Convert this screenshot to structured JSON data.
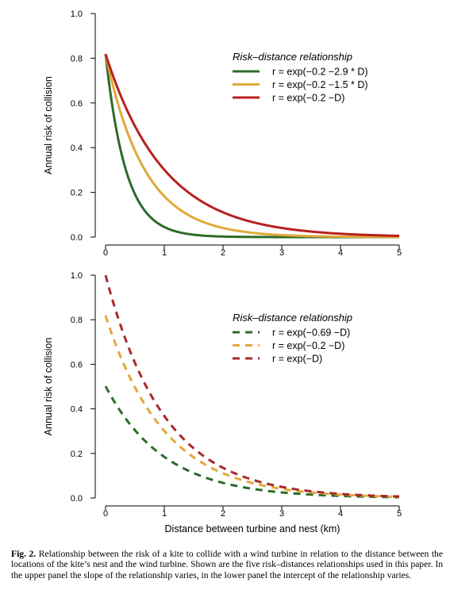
{
  "chart_data": [
    {
      "type": "line",
      "panel": "upper",
      "ylabel": "Annual risk of collision",
      "xlabel": "",
      "xlim": [
        0,
        5
      ],
      "ylim": [
        0,
        1
      ],
      "x_ticks": [
        "0",
        "1",
        "2",
        "3",
        "4",
        "5"
      ],
      "y_ticks": [
        "0.0",
        "0.2",
        "0.4",
        "0.6",
        "0.8",
        "1.0"
      ],
      "grid": false,
      "legend_placement": "top-right",
      "legend_title": "Risk–distance relationship",
      "line_style": "solid",
      "series": [
        {
          "name": "r = exp(−0.2 −2.9 * D)",
          "color": "#2e6b2a",
          "intercept": -0.2,
          "slope": 2.9,
          "x": [
            0,
            0.5,
            1,
            1.5,
            2,
            3,
            4,
            5
          ],
          "values": [
            0.819,
            0.192,
            0.045,
            0.011,
            0.002,
            0.0,
            0.0,
            0.0
          ]
        },
        {
          "name": "r = exp(−0.2 −1.5 * D)",
          "color": "#e0a93a",
          "intercept": -0.2,
          "slope": 1.5,
          "x": [
            0,
            0.5,
            1,
            1.5,
            2,
            3,
            4,
            5
          ],
          "values": [
            0.819,
            0.387,
            0.183,
            0.086,
            0.041,
            0.009,
            0.002,
            0.0
          ]
        },
        {
          "name": "r = exp(−0.2 −D)",
          "color": "#b8201e",
          "intercept": -0.2,
          "slope": 1.0,
          "x": [
            0,
            0.5,
            1,
            1.5,
            2,
            3,
            4,
            5
          ],
          "values": [
            0.819,
            0.497,
            0.301,
            0.183,
            0.111,
            0.041,
            0.015,
            0.006
          ]
        }
      ]
    },
    {
      "type": "line",
      "panel": "lower",
      "ylabel": "Annual risk of collision",
      "xlabel": "Distance between turbine and nest (km)",
      "xlim": [
        0,
        5
      ],
      "ylim": [
        0,
        1
      ],
      "x_ticks": [
        "0",
        "1",
        "2",
        "3",
        "4",
        "5"
      ],
      "y_ticks": [
        "0.0",
        "0.2",
        "0.4",
        "0.6",
        "0.8",
        "1.0"
      ],
      "grid": false,
      "legend_placement": "top-right",
      "legend_title": "Risk–distance relationship",
      "line_style": "dashed",
      "series": [
        {
          "name": "r = exp(−0.69 −D)",
          "color": "#2e6b2a",
          "intercept": -0.69,
          "slope": 1.0,
          "x": [
            0,
            0.5,
            1,
            1.5,
            2,
            3,
            4,
            5
          ],
          "values": [
            0.502,
            0.304,
            0.185,
            0.112,
            0.068,
            0.025,
            0.009,
            0.003
          ]
        },
        {
          "name": "r = exp(−0.2 −D)",
          "color": "#e0a93a",
          "intercept": -0.2,
          "slope": 1.0,
          "x": [
            0,
            0.5,
            1,
            1.5,
            2,
            3,
            4,
            5
          ],
          "values": [
            0.819,
            0.497,
            0.301,
            0.183,
            0.111,
            0.041,
            0.015,
            0.006
          ]
        },
        {
          "name": "r = exp(−D)",
          "color": "#a82a2a",
          "intercept": 0.0,
          "slope": 1.0,
          "x": [
            0,
            0.5,
            1,
            1.5,
            2,
            3,
            4,
            5
          ],
          "values": [
            1.0,
            0.607,
            0.368,
            0.223,
            0.135,
            0.05,
            0.018,
            0.007
          ]
        }
      ]
    }
  ],
  "caption": {
    "label": "Fig. 2.",
    "text": " Relationship between the risk of a kite to collide with a wind turbine in relation to the distance between the locations of the kite’s nest and the wind turbine. Shown are the five risk–distances relationships used in this paper. In the upper panel the slope of the relationship varies, in the lower panel the intercept of the relationship varies."
  }
}
